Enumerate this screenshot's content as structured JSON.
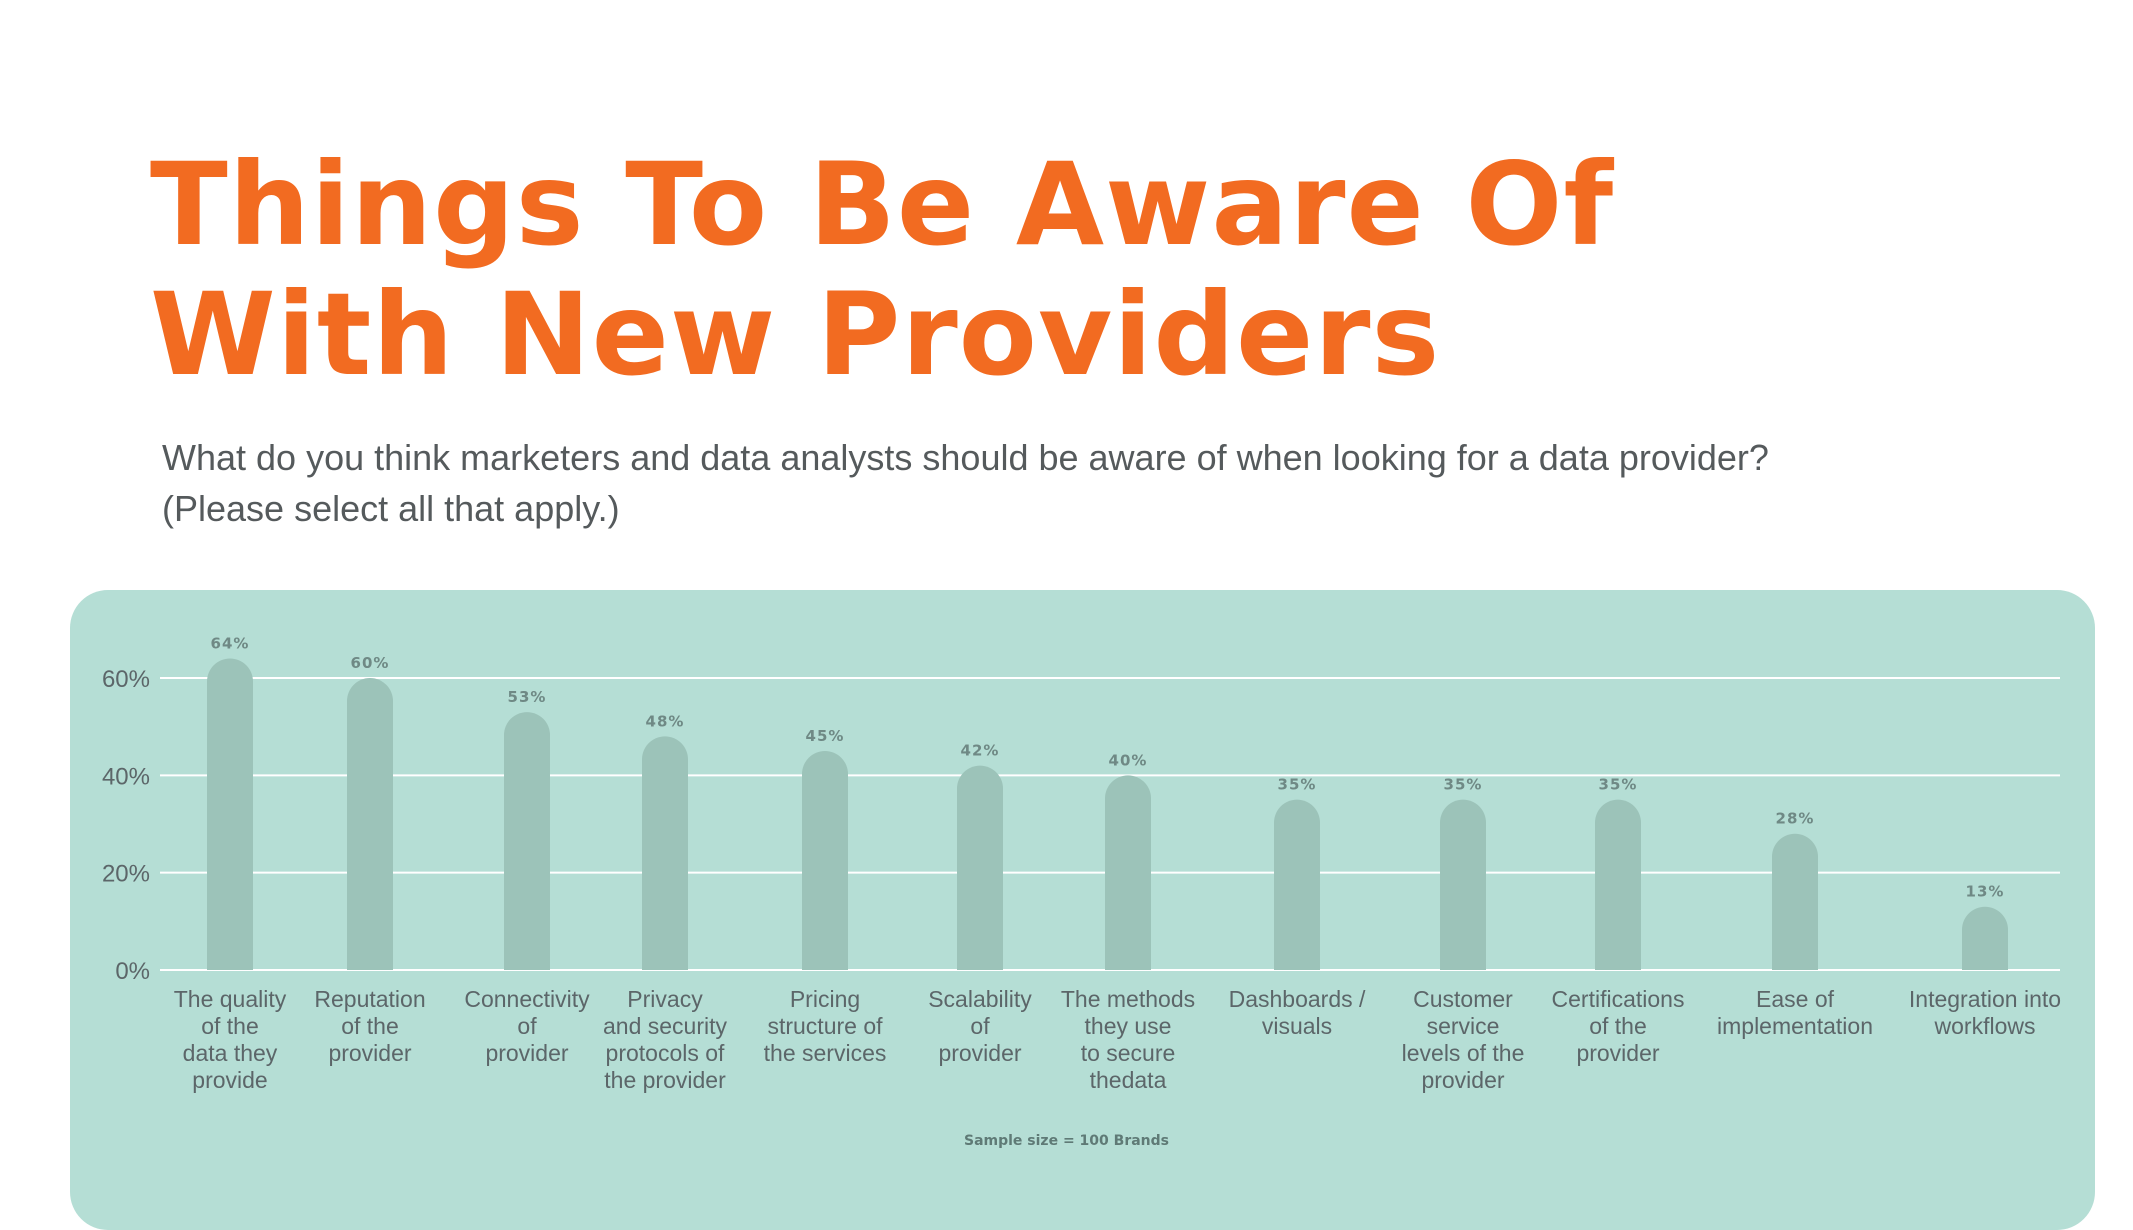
{
  "title": {
    "line1": "Things To Be Aware Of",
    "line2": "With New Providers"
  },
  "question": {
    "line1": "What do you think marketers and data analysts should be aware of when looking for a data provider?",
    "line2": "(Please select all that apply.)"
  },
  "colors": {
    "title": "#f26b21",
    "panel": "#b5ded5",
    "bar": "#9cc3b9",
    "grid": "#ffffff",
    "axis_text": "#5c6669",
    "value_label": "#6f8985"
  },
  "chart_data": {
    "type": "bar",
    "title": "",
    "xlabel": "",
    "ylabel": "",
    "ylim": [
      0,
      70
    ],
    "yticks": [
      0,
      20,
      40,
      60
    ],
    "ytick_labels": [
      "0%",
      "20%",
      "40%",
      "60%"
    ],
    "grid": true,
    "categories": [
      [
        "The quality",
        "of the",
        "data they",
        "provide"
      ],
      [
        "Reputation",
        "of the",
        "provider"
      ],
      [
        "Connectivity",
        "of",
        "provider"
      ],
      [
        "Privacy",
        "and security",
        "protocols of",
        "the provider"
      ],
      [
        "Pricing",
        "structure of",
        "the services"
      ],
      [
        "Scalability",
        "of",
        "provider"
      ],
      [
        "The methods",
        "they use",
        "to secure",
        "thedata"
      ],
      [
        "Dashboards /",
        "visuals"
      ],
      [
        "Customer",
        "service",
        "levels of the",
        "provider"
      ],
      [
        "Certifications",
        "of the",
        "provider"
      ],
      [
        "Ease of",
        "implementation"
      ],
      [
        "Integration into",
        "workflows"
      ]
    ],
    "values": [
      64,
      60,
      53,
      48,
      45,
      42,
      40,
      35,
      35,
      35,
      28,
      13
    ],
    "value_labels": [
      "64%",
      "60%",
      "53%",
      "48%",
      "45%",
      "42%",
      "40%",
      "35%",
      "35%",
      "35%",
      "28%",
      "13%"
    ]
  },
  "footnote": "Sample size = 100 Brands"
}
